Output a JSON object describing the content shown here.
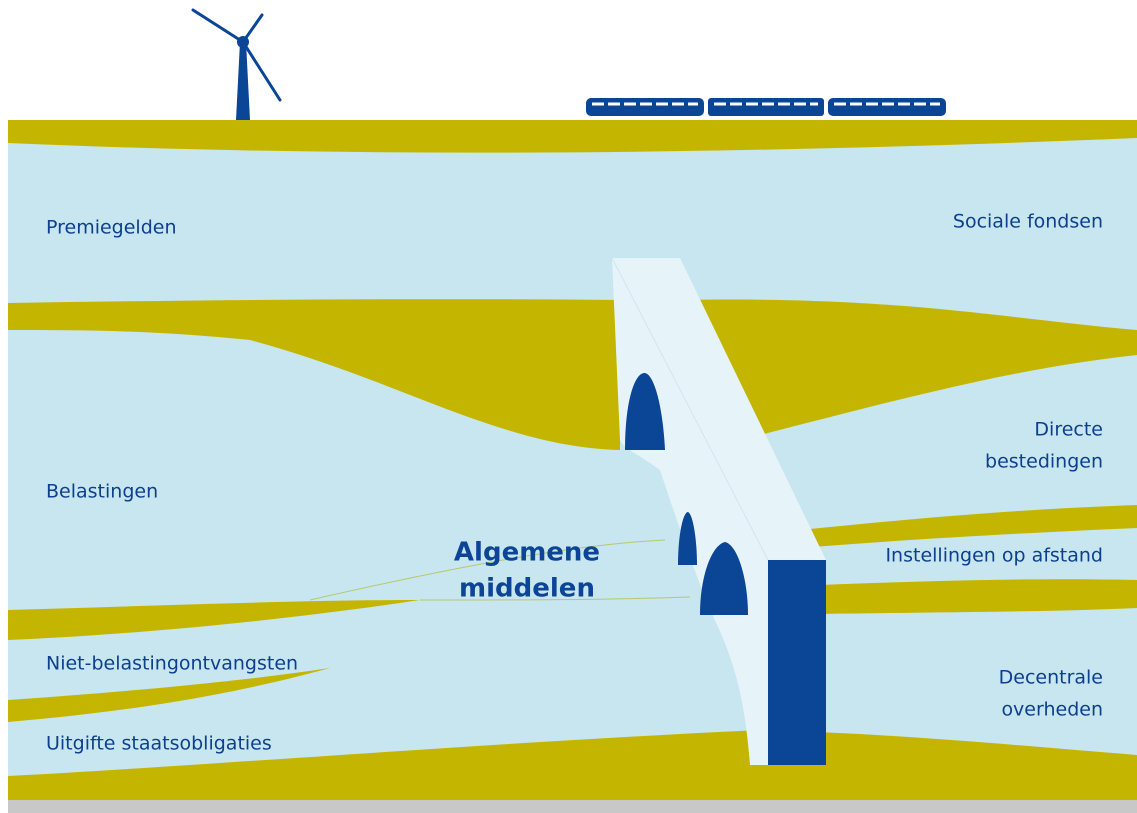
{
  "illustration": {
    "left_labels": [
      "Premiegelden",
      "Belastingen",
      "Niet-belastingontvangsten",
      "Uitgifte staatsobligaties"
    ],
    "center_label": [
      "Algemene",
      "middelen"
    ],
    "right_labels": [
      [
        "Sociale fondsen"
      ],
      [
        "Directe",
        "bestedingen"
      ],
      [
        "Instellingen op afstand"
      ],
      [
        "Decentrale",
        "overheden"
      ]
    ]
  }
}
